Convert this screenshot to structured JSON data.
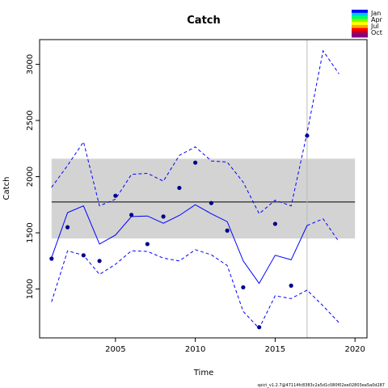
{
  "chart_data": {
    "type": "line",
    "title": "Catch",
    "xlabel": "Time",
    "ylabel": "Catch",
    "xlim": [
      2000.25,
      2020.75
    ],
    "ylim": [
      565,
      3220
    ],
    "x_ticks": [
      2005,
      2010,
      2015,
      2020
    ],
    "y_ticks": [
      1000,
      1500,
      2000,
      2500,
      3000
    ],
    "observed": {
      "x": [
        2001,
        2002,
        2003,
        2004,
        2005,
        2006,
        2007,
        2008,
        2009,
        2010,
        2011,
        2012,
        2013,
        2014,
        2015,
        2016,
        2017
      ],
      "y": [
        1270,
        1550,
        1300,
        1250,
        1830,
        1660,
        1400,
        1645,
        1900,
        2125,
        1765,
        1520,
        1015,
        660,
        1580,
        1030,
        2365
      ],
      "color": "#00008b"
    },
    "fitted": {
      "x": [
        2001,
        2002,
        2003,
        2004,
        2005,
        2006,
        2007,
        2008,
        2009,
        2010,
        2011,
        2012,
        2013,
        2014,
        2015,
        2016,
        2017
      ],
      "y": [
        1280,
        1680,
        1740,
        1400,
        1480,
        1645,
        1650,
        1585,
        1655,
        1750,
        1670,
        1600,
        1250,
        1050,
        1300,
        1260,
        1565
      ],
      "color": "#0000ff"
    },
    "upper_ci": {
      "x": [
        2001,
        2002,
        2003,
        2004,
        2005,
        2006,
        2007,
        2008,
        2009,
        2010,
        2011,
        2012,
        2013,
        2014,
        2015,
        2016,
        2017,
        2018,
        2019
      ],
      "y": [
        1905,
        2100,
        2310,
        1740,
        1800,
        2020,
        2030,
        1960,
        2190,
        2265,
        2140,
        2130,
        1950,
        1670,
        1790,
        1740,
        2390,
        3120,
        2915
      ],
      "color": "#0000ff"
    },
    "lower_ci": {
      "x": [
        2001,
        2002,
        2003,
        2004,
        2005,
        2006,
        2007,
        2008,
        2009,
        2010,
        2011,
        2012,
        2013,
        2014,
        2015,
        2016,
        2017,
        2018,
        2019
      ],
      "y": [
        885,
        1340,
        1300,
        1130,
        1220,
        1340,
        1335,
        1275,
        1250,
        1350,
        1305,
        1210,
        800,
        650,
        940,
        915,
        990,
        850,
        700
      ],
      "color": "#0000ff"
    },
    "forecast_median": {
      "x": [
        2017,
        2018,
        2019
      ],
      "y": [
        1565,
        1625,
        1420
      ],
      "color": "#0000ff"
    },
    "mean_line": 1775,
    "band": {
      "x_from": 2001,
      "x_to": 2020.0,
      "y_from": 1450,
      "y_to": 2160,
      "color": "#d3d3d3"
    },
    "vline_x": 2017,
    "grid": false,
    "legend": {
      "placement": "top-right",
      "entries": [
        "Jan",
        "Apr",
        "Jul",
        "Oct"
      ],
      "gradient": [
        "#0000ff",
        "#00c8ff",
        "#00ff66",
        "#7fff00",
        "#ffff00",
        "#ffa500",
        "#ff0000",
        "#b00040",
        "#800080"
      ]
    }
  },
  "footer": "spict_v1.2.7@47114fc8383c2a5d1c080f02ee02803ea5a0d287"
}
